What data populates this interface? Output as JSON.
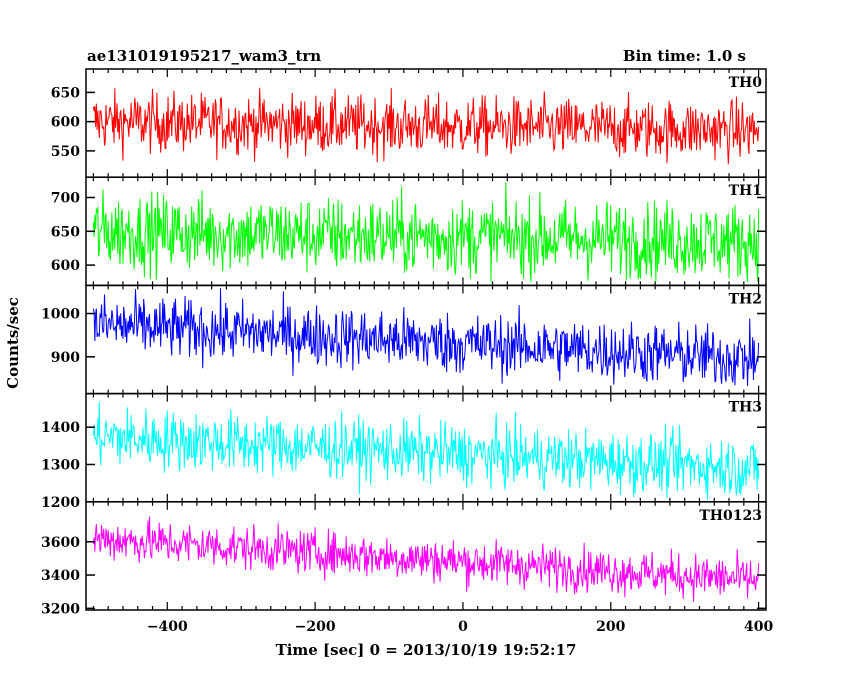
{
  "chart_data": {
    "type": "line",
    "title_left": "ae131019195217_wam3_trn",
    "title_right": "Bin time: 1.0 s",
    "xlabel": "Time [sec] 0 = 2013/10/19 19:52:17",
    "ylabel": "Counts/sec",
    "xlim": [
      -510,
      410
    ],
    "x_data_range": [
      -500,
      400
    ],
    "xticks": [
      -400,
      -200,
      0,
      200,
      400
    ],
    "panels": [
      {
        "name": "TH0",
        "color": "#ff0000",
        "ylim": [
          505,
          690
        ],
        "yticks": [
          550,
          600,
          650
        ],
        "trend_start": 600,
        "trend_end": 585,
        "noise": 25,
        "clip": [
          510,
          685
        ]
      },
      {
        "name": "TH1",
        "color": "#00ff00",
        "ylim": [
          570,
          730
        ],
        "yticks": [
          600,
          650,
          700
        ],
        "trend_start": 650,
        "trend_end": 635,
        "noise": 28,
        "clip": [
          575,
          725
        ]
      },
      {
        "name": "TH2",
        "color": "#0000ff",
        "ylim": [
          815,
          1065
        ],
        "yticks": [
          900,
          1000
        ],
        "trend_start": 975,
        "trend_end": 895,
        "noise": 35,
        "clip": [
          820,
          1060
        ]
      },
      {
        "name": "TH3",
        "color": "#00ffff",
        "ylim": [
          1200,
          1490
        ],
        "yticks": [
          1200,
          1300,
          1400
        ],
        "trend_start": 1375,
        "trend_end": 1290,
        "noise": 40,
        "clip": [
          1205,
          1485
        ]
      },
      {
        "name": "TH0123",
        "color": "#ff00ff",
        "ylim": [
          3190,
          3840
        ],
        "yticks": [
          3200,
          3400,
          3600
        ],
        "trend_start": 3620,
        "trend_end": 3370,
        "noise": 65,
        "clip": [
          3195,
          3835
        ]
      }
    ]
  }
}
